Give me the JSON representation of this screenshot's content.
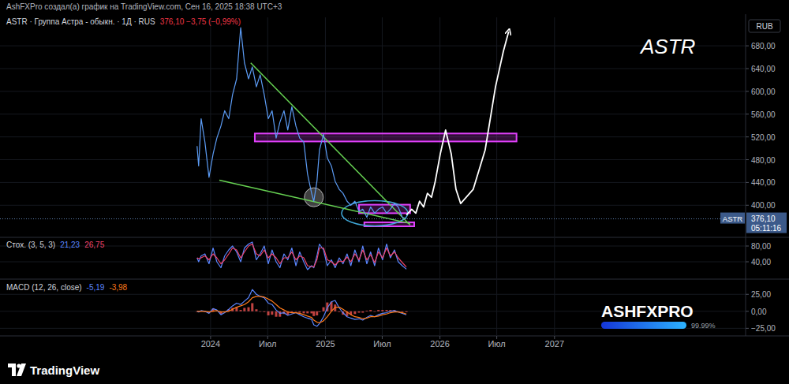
{
  "page": {
    "author_line": "AshFXPro создал(а) график на TradingView.com, Сен 16, 2025 18:38 UTC+3",
    "big_label": "ASTR",
    "currency": "RUB",
    "watermark": "ASHFXPRO",
    "progress": {
      "value": 99.99,
      "label": "99.99%"
    },
    "logo": "TradingView"
  },
  "chart_data": [
    {
      "type": "line",
      "title": "ASTR · Группа Астра - обыкн. · 1Д · RUS",
      "subtitle": "376,10 −3,75 (−0,99%)",
      "x": [
        "2023-11-19",
        "2023-11-24",
        "2023-12-02",
        "2023-12-14",
        "2023-12-27",
        "2024-01-09",
        "2024-01-21",
        "2024-02-03",
        "2024-02-15",
        "2024-02-28",
        "2024-03-11",
        "2024-03-24",
        "2024-04-06",
        "2024-04-18",
        "2024-05-01",
        "2024-05-13",
        "2024-05-26",
        "2024-06-07",
        "2024-06-20",
        "2024-07-03",
        "2024-07-15",
        "2024-07-28",
        "2024-08-09",
        "2024-08-22",
        "2024-09-03",
        "2024-09-16",
        "2024-09-29",
        "2024-10-11",
        "2024-10-24",
        "2024-11-05",
        "2024-11-18",
        "2024-11-25",
        "2024-12-05",
        "2024-12-13",
        "2024-12-26",
        "2025-01-07",
        "2025-01-20",
        "2025-02-01",
        "2025-02-14",
        "2025-02-26",
        "2025-03-11",
        "2025-03-23",
        "2025-04-05",
        "2025-04-18",
        "2025-04-30",
        "2025-05-13",
        "2025-05-25",
        "2025-06-07",
        "2025-06-19",
        "2025-07-02",
        "2025-07-15",
        "2025-07-27",
        "2025-08-09",
        "2025-08-21",
        "2025-09-03",
        "2025-09-16"
      ],
      "series": [
        {
          "color": "#5c9cf5",
          "values": [
            504,
            469,
            552,
            511,
            449,
            490,
            518,
            539,
            566,
            552,
            594,
            622,
            712,
            650,
            622,
            643,
            608,
            629,
            594,
            552,
            566,
            518,
            546,
            566,
            532,
            573,
            539,
            518,
            511,
            455,
            421,
            407,
            442,
            497,
            525,
            483,
            469,
            442,
            428,
            421,
            407,
            400,
            407,
            389,
            393,
            379,
            397,
            386,
            393,
            397,
            386,
            393,
            403,
            397,
            379,
            376.1
          ]
        }
      ],
      "xlim": [
        "2022-03-01",
        "2028-09-01"
      ],
      "ylim": [
        345,
        730
      ],
      "yticks": [
        {
          "value": 400,
          "label": "400,00"
        },
        {
          "value": 440,
          "label": "440,00"
        },
        {
          "value": 480,
          "label": "480,00"
        },
        {
          "value": 520,
          "label": "520,00"
        },
        {
          "value": 560,
          "label": "560,00"
        },
        {
          "value": 600,
          "label": "600,00"
        },
        {
          "value": 640,
          "label": "640,00"
        },
        {
          "value": 680,
          "label": "680,00"
        }
      ],
      "grid": true,
      "tick_labels": "y",
      "last_price": {
        "value": 376.1,
        "label": "376,10",
        "symbol": "ASTR",
        "countdown": "05:11:16"
      },
      "zones": [
        {
          "color": "#e040fb",
          "x": [
            "2024-05-21",
            "2026-09-02"
          ],
          "y": [
            512,
            526
          ]
        },
        {
          "color": "#e040fb",
          "x": [
            "2025-04-18",
            "2025-09-28"
          ],
          "y": [
            386,
            401
          ]
        },
        {
          "color": "#e040fb",
          "x": [
            "2025-05-05",
            "2025-10-11"
          ],
          "y": [
            363,
            370
          ]
        }
      ],
      "trendlines": [
        {
          "color": "#66d152",
          "x": [
            "2024-05-08",
            "2025-09-28"
          ],
          "y": [
            650,
            365
          ]
        },
        {
          "color": "#66d152",
          "x": [
            "2024-01-29",
            "2025-09-28"
          ],
          "y": [
            444,
            368
          ]
        }
      ],
      "highlights": [
        {
          "shape": "circle",
          "color": "#b8b8b8",
          "x": "2024-11-25",
          "y": 414
        },
        {
          "shape": "ellipse",
          "color": "#3fa7d6",
          "x": "2025-06-07",
          "y": 386
        }
      ],
      "forecast": {
        "color": "#ffffff",
        "x": [
          "2025-09-16",
          "2025-10-03",
          "2025-10-16",
          "2025-10-28",
          "2025-11-10",
          "2025-11-22",
          "2025-12-05",
          "2025-12-17",
          "2026-01-02",
          "2026-01-19",
          "2026-02-06",
          "2026-02-21",
          "2026-03-08",
          "2026-04-17",
          "2026-05-25",
          "2026-06-27",
          "2026-07-22",
          "2026-08-08"
        ],
        "y": [
          383,
          393,
          386,
          407,
          397,
          421,
          414,
          442,
          490,
          532,
          490,
          428,
          403,
          428,
          497,
          608,
          670,
          705
        ]
      }
    },
    {
      "type": "line",
      "title": "Стох. (3, 5, 3)",
      "x": [
        "2023-11-19",
        "2023-11-24",
        "2023-12-02",
        "2023-12-14",
        "2023-12-27",
        "2024-01-09",
        "2024-01-21",
        "2024-02-03",
        "2024-02-15",
        "2024-02-28",
        "2024-03-11",
        "2024-03-24",
        "2024-04-06",
        "2024-04-18",
        "2024-05-01",
        "2024-05-13",
        "2024-05-26",
        "2024-06-07",
        "2024-06-20",
        "2024-07-03",
        "2024-07-15",
        "2024-07-28",
        "2024-08-09",
        "2024-08-22",
        "2024-09-03",
        "2024-09-16",
        "2024-09-29",
        "2024-10-11",
        "2024-10-24",
        "2024-11-05",
        "2024-11-18",
        "2024-11-25",
        "2024-12-05",
        "2024-12-13",
        "2024-12-26",
        "2025-01-07",
        "2025-01-20",
        "2025-02-01",
        "2025-02-14",
        "2025-02-26",
        "2025-03-11",
        "2025-03-23",
        "2025-04-05",
        "2025-04-18",
        "2025-04-30",
        "2025-05-13",
        "2025-05-25",
        "2025-06-07",
        "2025-06-19",
        "2025-07-02",
        "2025-07-15",
        "2025-07-27",
        "2025-08-09",
        "2025-08-21",
        "2025-09-03",
        "2025-09-16"
      ],
      "series": [
        {
          "color": "#5a86ff",
          "last_value_label": "21,23",
          "values": [
            50,
            40,
            55,
            60,
            35,
            75,
            40,
            25,
            55,
            70,
            80,
            65,
            40,
            75,
            85,
            90,
            45,
            60,
            80,
            35,
            70,
            40,
            25,
            60,
            45,
            75,
            30,
            65,
            40,
            20,
            30,
            25,
            55,
            85,
            70,
            30,
            45,
            25,
            50,
            35,
            60,
            30,
            70,
            40,
            80,
            35,
            65,
            30,
            75,
            45,
            85,
            50,
            70,
            40,
            30,
            21.23
          ]
        },
        {
          "color": "#f0446c",
          "last_value_label": "26,75",
          "values": [
            50,
            48,
            50,
            55,
            45,
            60,
            50,
            35,
            45,
            60,
            75,
            70,
            50,
            65,
            80,
            85,
            60,
            55,
            70,
            50,
            60,
            50,
            35,
            50,
            50,
            65,
            45,
            55,
            50,
            30,
            28,
            27,
            45,
            75,
            75,
            45,
            40,
            32,
            42,
            40,
            52,
            40,
            60,
            45,
            70,
            45,
            58,
            38,
            65,
            50,
            75,
            55,
            65,
            50,
            38,
            26.75
          ]
        }
      ],
      "xlim": [
        "2022-03-01",
        "2028-09-01"
      ],
      "ylim": [
        0,
        100
      ],
      "yticks": [
        {
          "value": 40,
          "label": "40,00"
        },
        {
          "value": 80,
          "label": "80,00"
        }
      ],
      "grid": true,
      "tick_labels": "y"
    },
    {
      "type": "line",
      "title": "MACD (12, 26, close)",
      "x": [
        "2023-11-19",
        "2023-11-24",
        "2023-12-02",
        "2023-12-14",
        "2023-12-27",
        "2024-01-09",
        "2024-01-21",
        "2024-02-03",
        "2024-02-15",
        "2024-02-28",
        "2024-03-11",
        "2024-03-24",
        "2024-04-06",
        "2024-04-18",
        "2024-05-01",
        "2024-05-13",
        "2024-05-26",
        "2024-06-07",
        "2024-06-20",
        "2024-07-03",
        "2024-07-15",
        "2024-07-28",
        "2024-08-09",
        "2024-08-22",
        "2024-09-03",
        "2024-09-16",
        "2024-09-29",
        "2024-10-11",
        "2024-10-24",
        "2024-11-05",
        "2024-11-18",
        "2024-11-25",
        "2024-12-05",
        "2024-12-13",
        "2024-12-26",
        "2025-01-07",
        "2025-01-20",
        "2025-02-01",
        "2025-02-14",
        "2025-02-26",
        "2025-03-11",
        "2025-03-23",
        "2025-04-05",
        "2025-04-18",
        "2025-04-30",
        "2025-05-13",
        "2025-05-25",
        "2025-06-07",
        "2025-06-19",
        "2025-07-02",
        "2025-07-15",
        "2025-07-27",
        "2025-08-09",
        "2025-08-21",
        "2025-09-03",
        "2025-09-16"
      ],
      "series": [
        {
          "type": "bar",
          "color": "#ef5350",
          "values": [
            0,
            -1,
            1,
            0,
            -2,
            4,
            1,
            -4,
            -1,
            3,
            5,
            6,
            2,
            5,
            6,
            12,
            3,
            0,
            -1,
            -6,
            -5,
            -8,
            -8,
            -4,
            -5,
            -2,
            0,
            -2,
            -3,
            -3,
            -3,
            -7,
            -6,
            -1,
            6,
            13,
            14,
            10,
            -1,
            -5,
            -7,
            -5,
            -4,
            -2,
            -2,
            1,
            2,
            0,
            2,
            2,
            2,
            2,
            2,
            0,
            -1,
            -1.21
          ]
        },
        {
          "type": "line",
          "color": "#5a86ff",
          "last_value_label": "-5,19",
          "values": [
            0,
            -1,
            1,
            0,
            -3,
            4,
            2,
            -5,
            -2,
            3,
            8,
            12,
            10,
            15,
            20,
            32,
            25,
            22,
            20,
            12,
            10,
            2,
            -3,
            -2,
            -6,
            -4,
            -2,
            -5,
            -8,
            -10,
            -12,
            -20,
            -22,
            -18,
            -8,
            5,
            14,
            16,
            5,
            -2,
            -8,
            -10,
            -12,
            -11,
            -13,
            -9,
            -6,
            -8,
            -5,
            -3,
            -2,
            0,
            1,
            -1,
            -3,
            -5.19
          ]
        },
        {
          "type": "line",
          "color": "#ff7a1a",
          "last_value_label": "-3,98",
          "values": [
            0,
            0,
            0,
            0,
            -1,
            0,
            1,
            -1,
            -1,
            0,
            3,
            6,
            8,
            10,
            14,
            20,
            22,
            22,
            21,
            18,
            15,
            10,
            5,
            2,
            -1,
            -2,
            -2,
            -3,
            -5,
            -7,
            -9,
            -13,
            -16,
            -17,
            -14,
            -8,
            0,
            6,
            6,
            3,
            -1,
            -5,
            -8,
            -9,
            -11,
            -10,
            -8,
            -8,
            -7,
            -5,
            -4,
            -2,
            -1,
            -1,
            -2,
            -3.98
          ]
        }
      ],
      "xlim": [
        "2022-03-01",
        "2028-09-01"
      ],
      "ylim": [
        -35,
        45
      ],
      "yticks": [
        {
          "value": -25,
          "label": "−25,00"
        },
        {
          "value": 0,
          "label": "0,00"
        },
        {
          "value": 25,
          "label": "25,00"
        }
      ],
      "xticks": [
        {
          "value": "2024-01-01",
          "label": "2024"
        },
        {
          "value": "2024-07-01",
          "label": "Июл"
        },
        {
          "value": "2025-01-01",
          "label": "2025"
        },
        {
          "value": "2025-07-01",
          "label": "Июл"
        },
        {
          "value": "2026-01-01",
          "label": "2026"
        },
        {
          "value": "2026-07-01",
          "label": "Июл"
        },
        {
          "value": "2027-01-01",
          "label": "2027"
        }
      ],
      "grid": true,
      "tick_labels": true
    }
  ]
}
